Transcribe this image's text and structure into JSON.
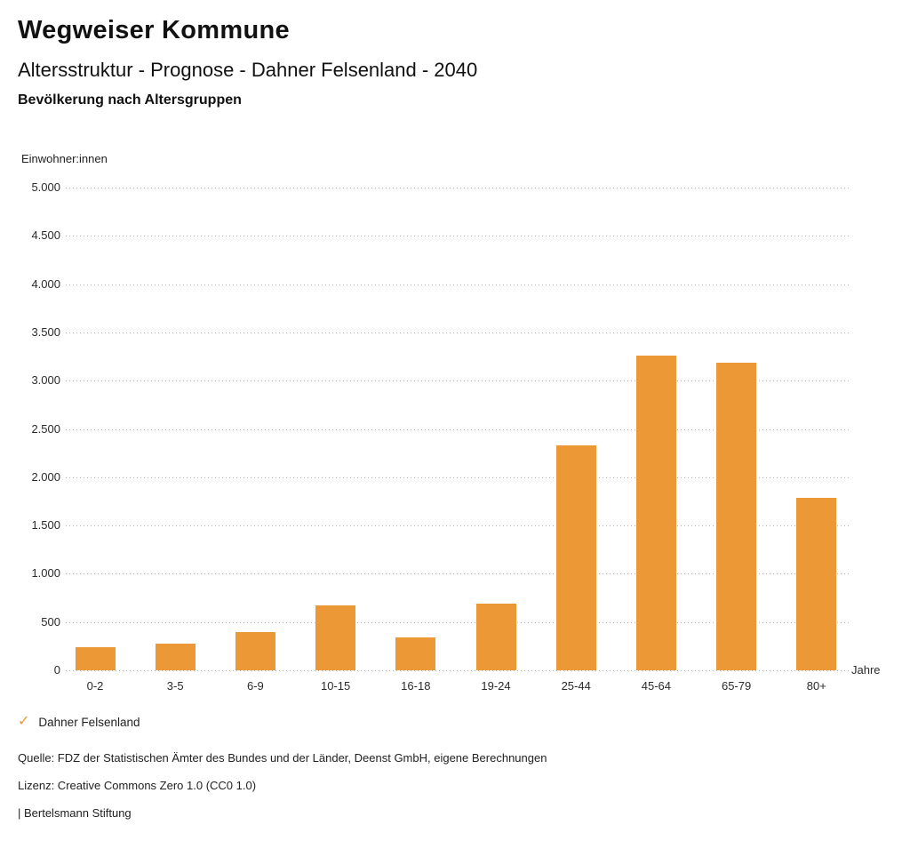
{
  "header": {
    "title": "Wegweiser Kommune",
    "subtitle": "Altersstruktur - Prognose - Dahner Felsenland - 2040",
    "chart_subtitle": "Bevölkerung nach Altersgruppen"
  },
  "chart_data": {
    "type": "bar",
    "title": "Bevölkerung nach Altersgruppen",
    "categories": [
      "0-2",
      "3-5",
      "6-9",
      "10-15",
      "16-18",
      "19-24",
      "25-44",
      "45-64",
      "65-79",
      "80+"
    ],
    "values": [
      240,
      280,
      400,
      670,
      340,
      690,
      2330,
      3260,
      3190,
      1790
    ],
    "unit_label": "Einwohner:innen",
    "xlabel": "Jahre",
    "ylim": [
      0,
      5000
    ],
    "ytick_values": [
      5000,
      4500,
      4000,
      3500,
      3000,
      2500,
      2000,
      1500,
      1000,
      500,
      0
    ],
    "ytick_labels": [
      "5.000",
      "4.500",
      "4.000",
      "3.500",
      "3.000",
      "2.500",
      "2.000",
      "1.500",
      "1.000",
      "500",
      "0"
    ],
    "grid": "dotted horizontal",
    "legend_position": "bottom-left",
    "series_name": "Dahner Felsenland"
  },
  "legend": {
    "check_icon": "✓",
    "label": "Dahner Felsenland"
  },
  "footer": {
    "source": "Quelle: FDZ der Statistischen Ämter des Bundes und der Länder, Deenst GmbH, eigene Berechnungen",
    "license": "Lizenz: Creative Commons Zero 1.0 (CC0 1.0)",
    "attribution": "| Bertelsmann Stiftung"
  },
  "colors": {
    "bar": "#ED9836",
    "accent": "#ED9836",
    "grid": "#B5B5B5",
    "text": "#1A1A1A"
  }
}
